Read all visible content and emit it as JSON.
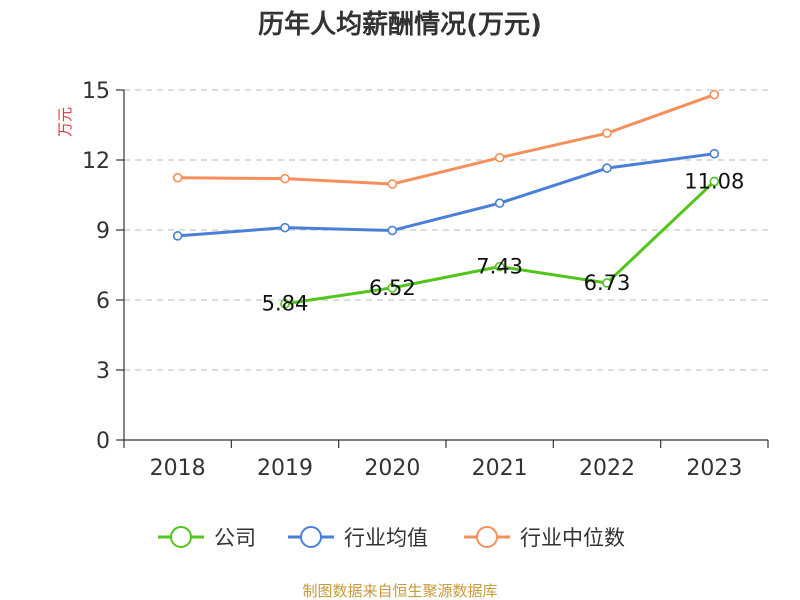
{
  "chart_data": {
    "type": "line",
    "title": "历年人均薪酬情况(万元)",
    "ylabel": "万元",
    "xlabel": "",
    "categories": [
      "2018",
      "2019",
      "2020",
      "2021",
      "2022",
      "2023"
    ],
    "yticks": [
      "0",
      "3",
      "6",
      "9",
      "12",
      "15"
    ],
    "ylim": [
      0,
      15
    ],
    "grid": true,
    "legend_position": "bottom",
    "series": [
      {
        "name": "公司",
        "color": "#52c41a",
        "values": [
          null,
          5.84,
          6.52,
          7.43,
          6.73,
          11.08
        ],
        "labels": [
          "",
          "5.84",
          "6.52",
          "7.43",
          "6.73",
          "11.08"
        ]
      },
      {
        "name": "行业均值",
        "color": "#4a7fd8",
        "values": [
          8.75,
          9.1,
          8.98,
          10.15,
          11.65,
          12.27
        ]
      },
      {
        "name": "行业中位数",
        "color": "#f58f5c",
        "values": [
          11.24,
          11.2,
          10.97,
          12.1,
          13.15,
          14.8
        ]
      }
    ]
  },
  "source": "制图数据来自恒生聚源数据库"
}
